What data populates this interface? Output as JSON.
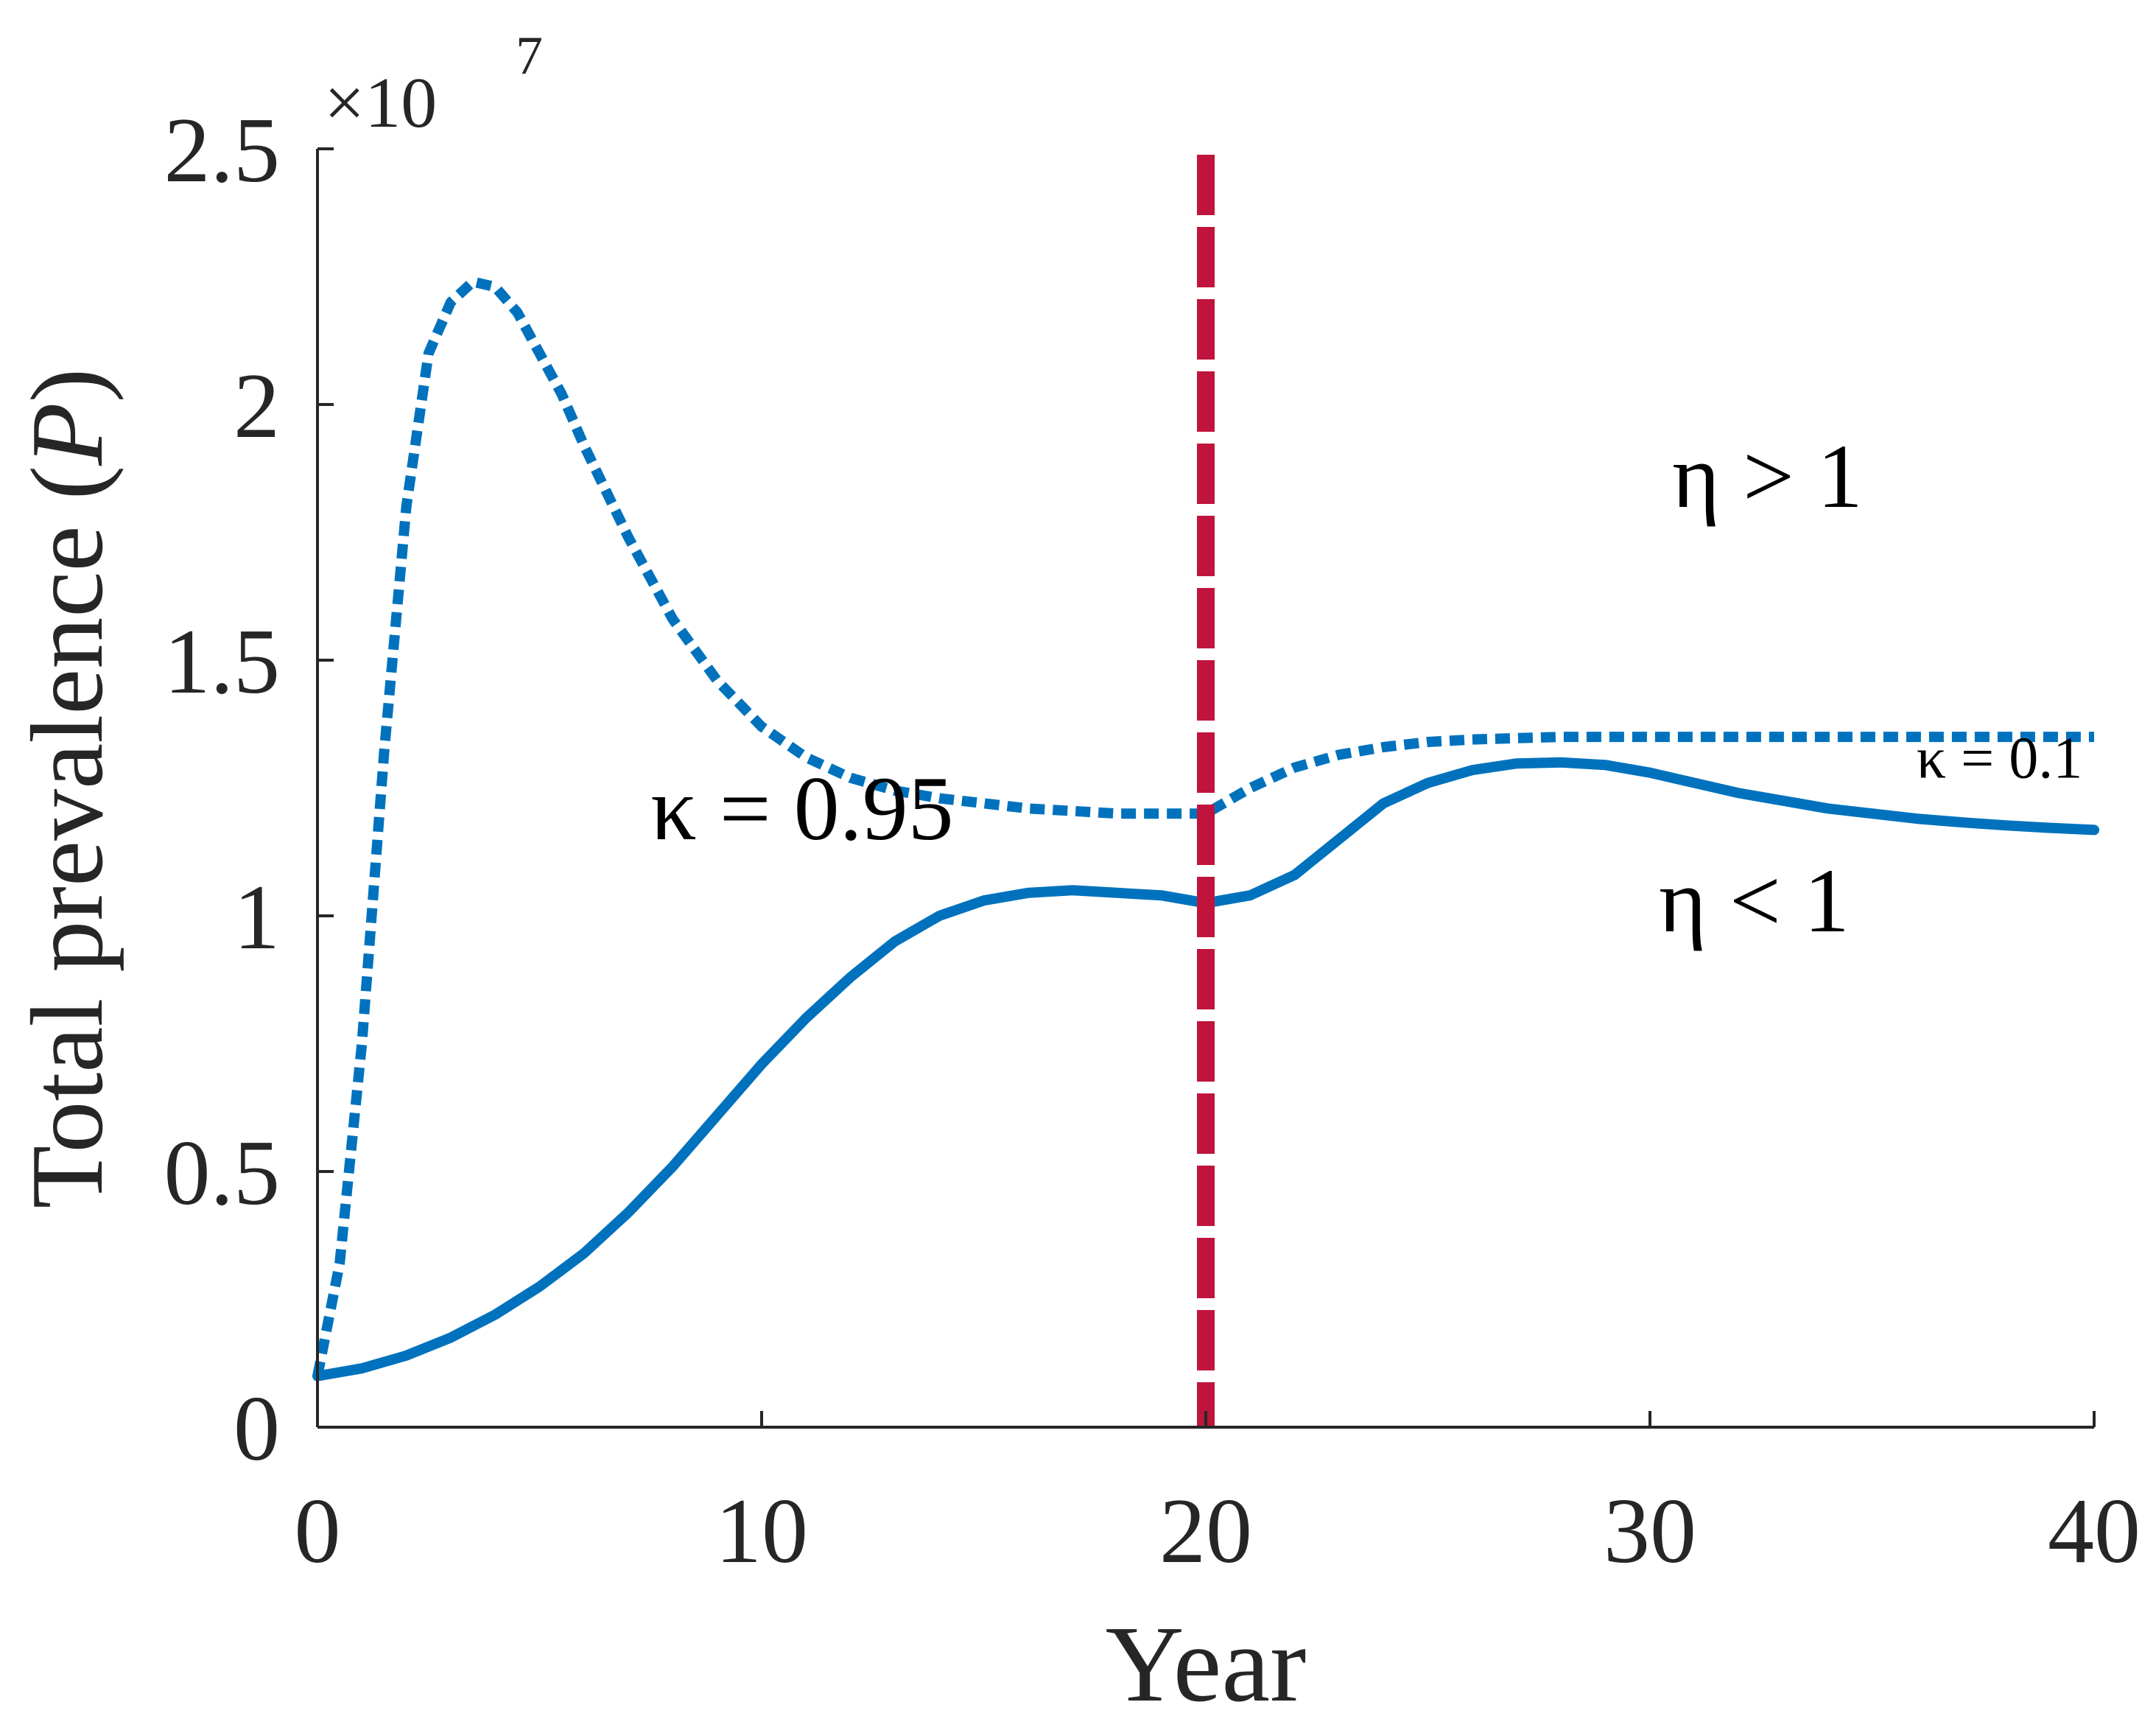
{
  "chart_data": {
    "type": "line",
    "title": "",
    "xlabel": "Year",
    "ylabel_text": "Total prevalence (",
    "ylabel_var": "P",
    "ylabel_close": ")",
    "y_multiplier": {
      "base": "×10",
      "exponent": "7"
    },
    "xlim": [
      0,
      40
    ],
    "ylim": [
      0,
      2.5
    ],
    "x_ticks": [
      0,
      10,
      20,
      30,
      40
    ],
    "y_ticks": [
      0,
      0.5,
      1,
      1.5,
      2,
      2.5
    ],
    "x_tick_labels": [
      "0",
      "10",
      "20",
      "30",
      "40"
    ],
    "y_tick_labels": [
      "0",
      "0.5",
      "1",
      "1.5",
      "2",
      "2.5"
    ],
    "grid": false,
    "series": [
      {
        "style": "dotted",
        "color": "#0072BD",
        "x": [
          0,
          0.5,
          1,
          1.5,
          2,
          2.5,
          3,
          3.5,
          4,
          4.5,
          5,
          5.5,
          6,
          7,
          8,
          9,
          10,
          11,
          12,
          13,
          14,
          15,
          16,
          17,
          18,
          19,
          20,
          21,
          22,
          23,
          24,
          25,
          26,
          28,
          30,
          32,
          34,
          36,
          38,
          40
        ],
        "y": [
          0.1,
          0.32,
          0.75,
          1.32,
          1.8,
          2.1,
          2.2,
          2.24,
          2.23,
          2.18,
          2.1,
          2.02,
          1.92,
          1.74,
          1.58,
          1.46,
          1.37,
          1.31,
          1.27,
          1.245,
          1.23,
          1.22,
          1.21,
          1.205,
          1.2,
          1.2,
          1.2,
          1.25,
          1.29,
          1.315,
          1.33,
          1.34,
          1.345,
          1.35,
          1.35,
          1.35,
          1.35,
          1.35,
          1.35,
          1.35
        ]
      },
      {
        "style": "solid",
        "color": "#0072BD",
        "x": [
          0,
          1,
          2,
          3,
          4,
          5,
          6,
          7,
          8,
          9,
          10,
          11,
          12,
          13,
          14,
          15,
          16,
          17,
          18,
          19,
          20,
          21,
          22,
          23,
          24,
          25,
          26,
          27,
          28,
          29,
          30,
          31,
          32,
          33,
          34,
          35,
          36,
          37,
          38,
          39,
          40
        ],
        "y": [
          0.1,
          0.115,
          0.14,
          0.175,
          0.22,
          0.275,
          0.34,
          0.42,
          0.51,
          0.61,
          0.71,
          0.8,
          0.88,
          0.95,
          1.0,
          1.03,
          1.045,
          1.05,
          1.045,
          1.04,
          1.025,
          1.04,
          1.08,
          1.15,
          1.22,
          1.26,
          1.285,
          1.298,
          1.3,
          1.295,
          1.28,
          1.26,
          1.24,
          1.225,
          1.21,
          1.2,
          1.19,
          1.183,
          1.177,
          1.172,
          1.168
        ]
      }
    ],
    "vline": {
      "x": 20,
      "color": "#C0143C",
      "style": "dashed"
    },
    "annotations": [
      {
        "id": "kappa-high",
        "text": "κ = 0.95",
        "x": 7.5,
        "y": 1.15
      },
      {
        "id": "kappa-low",
        "text": "κ = 0.1",
        "x": 36,
        "y": 1.27
      },
      {
        "id": "eta-gt",
        "text": "η > 1",
        "x": 30.5,
        "y": 1.8
      },
      {
        "id": "eta-lt",
        "text": "η < 1",
        "x": 30.2,
        "y": 0.97
      }
    ]
  }
}
